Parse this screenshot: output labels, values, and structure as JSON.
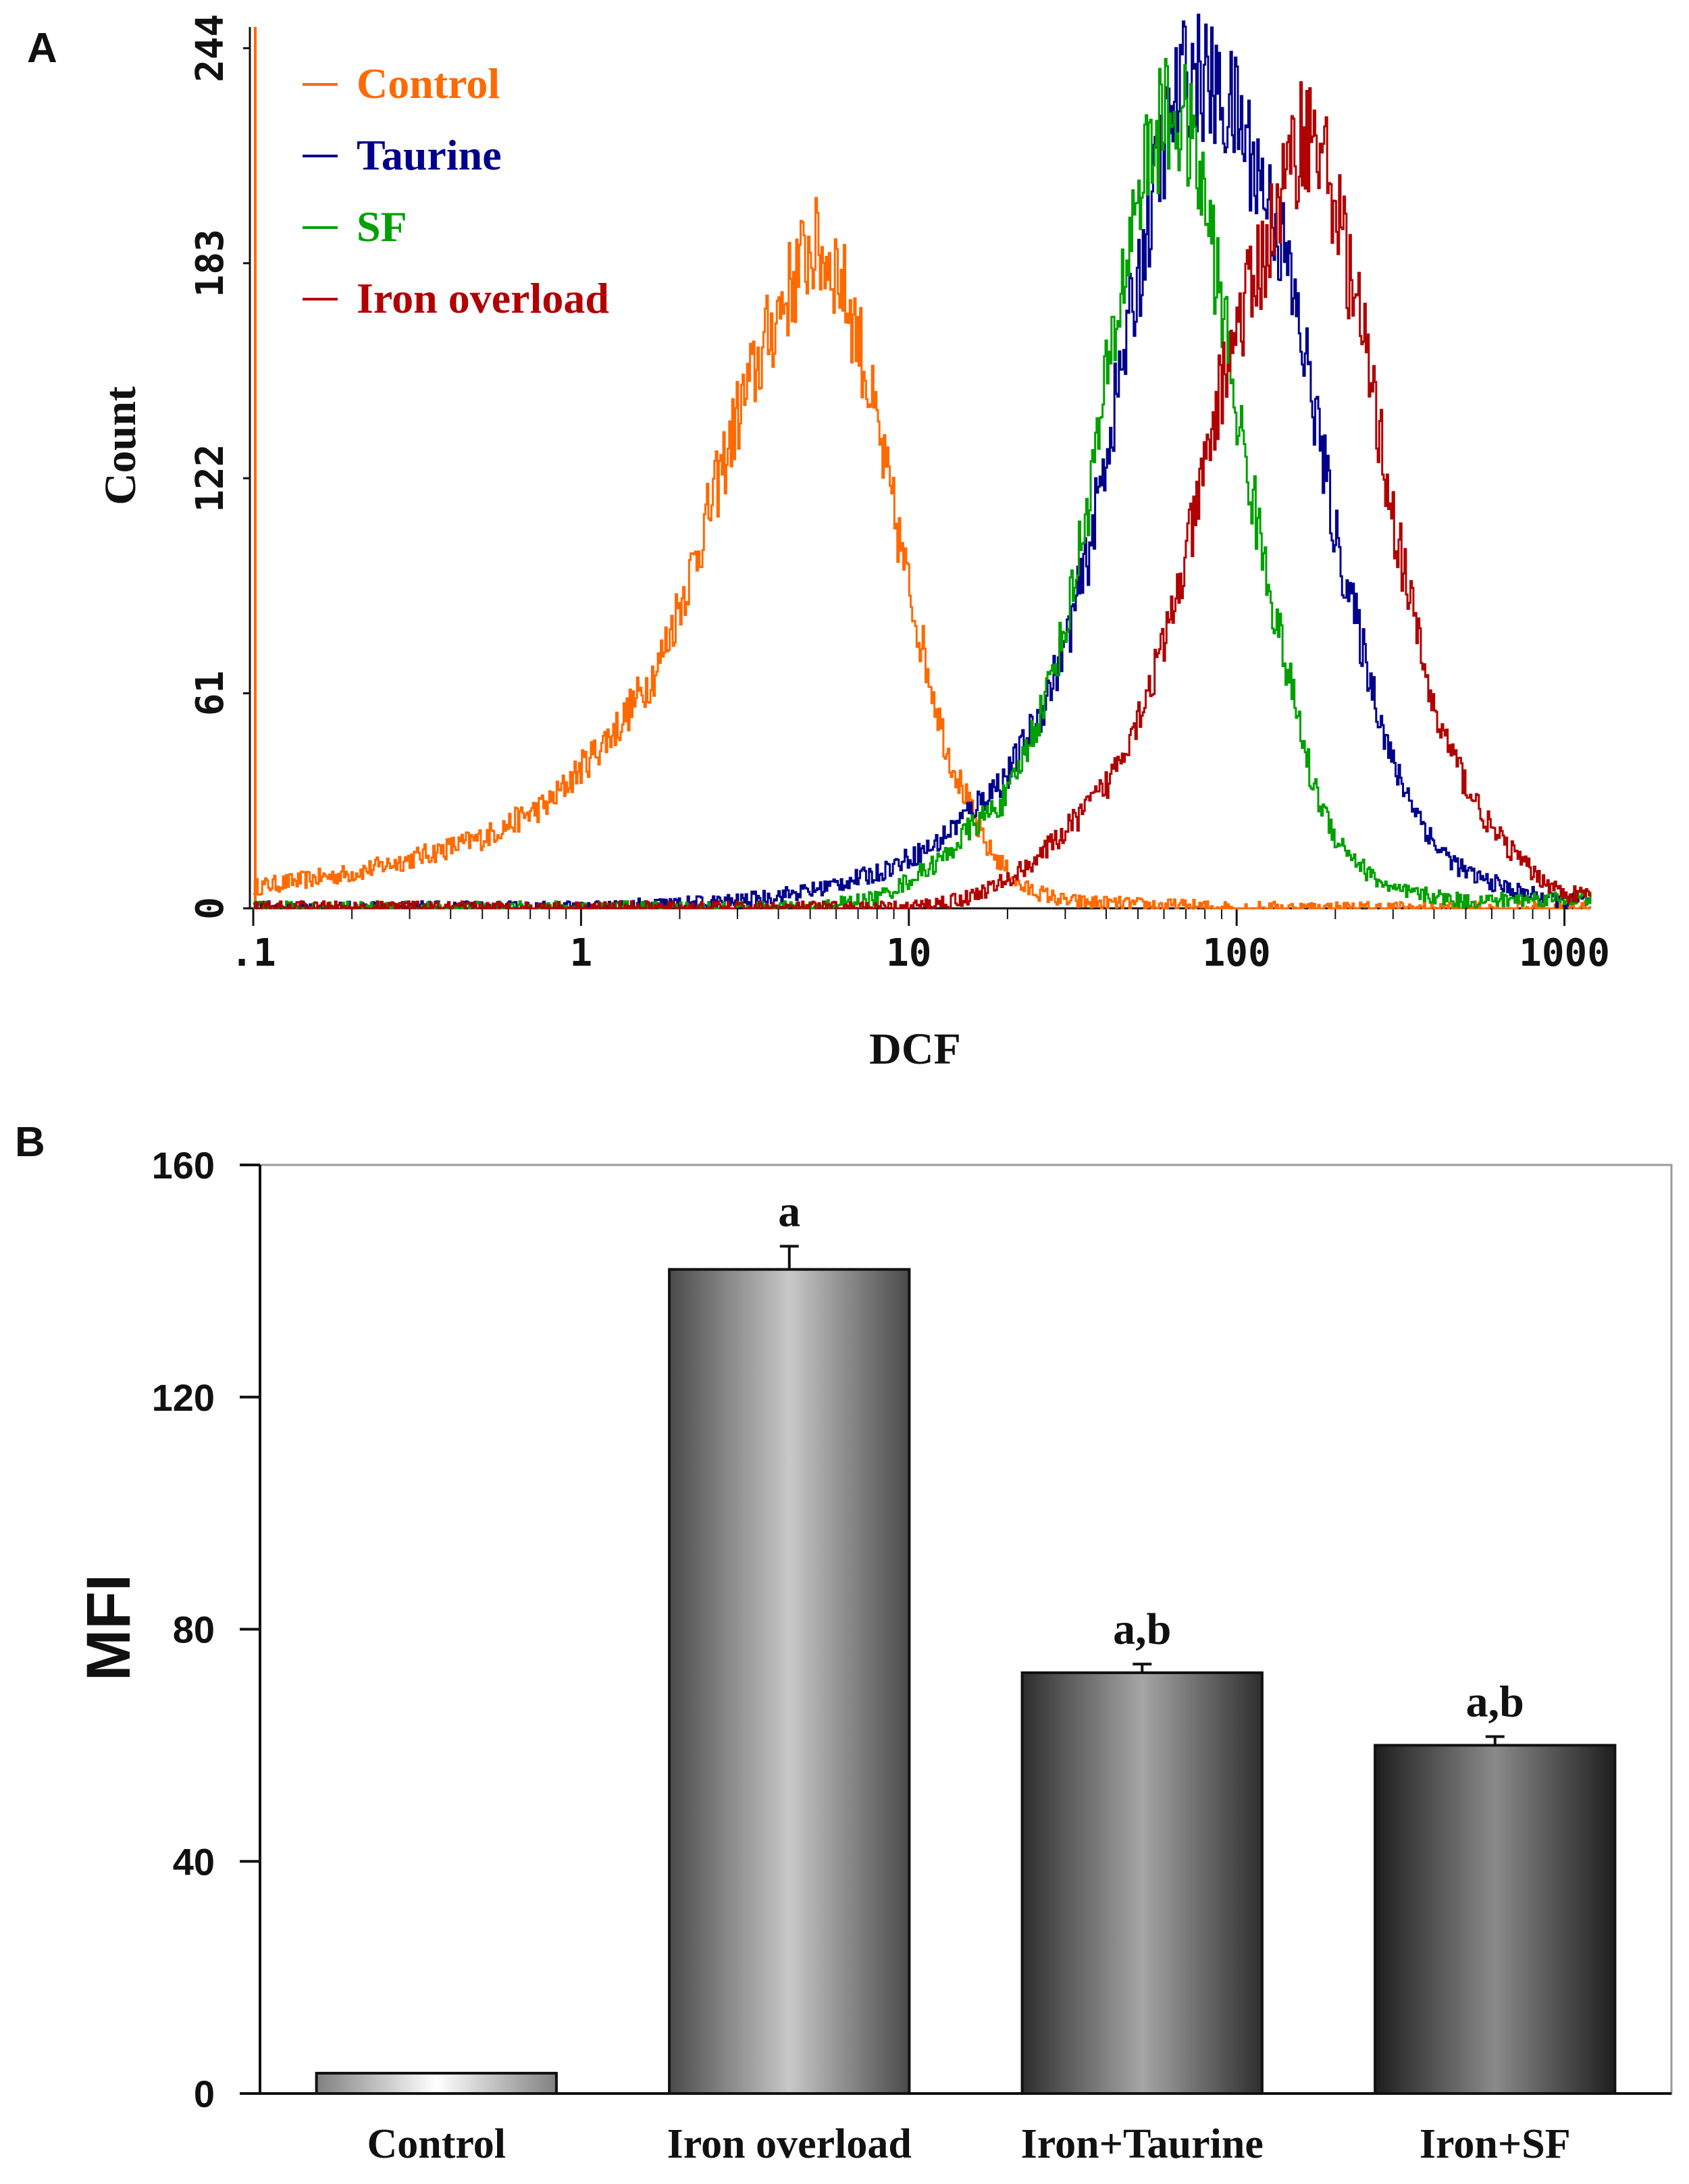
{
  "panels": {
    "a_letter": "A",
    "b_letter": "B"
  },
  "chart_data": [
    {
      "type": "line",
      "panel": "A",
      "title": "",
      "xlabel": "DCF",
      "ylabel": "Count",
      "xscale": "log",
      "xlim": [
        0.1,
        1200
      ],
      "ylim": [
        0,
        250
      ],
      "x_tick_labels": [
        ".1",
        "1",
        "10",
        "100",
        "1000"
      ],
      "x_tick_values": [
        0.1,
        1,
        10,
        100,
        1000
      ],
      "y_tick_labels": [
        "0",
        "61",
        "122",
        "183",
        "244"
      ],
      "y_tick_values": [
        0,
        61,
        122,
        183,
        244
      ],
      "legend_position": "top-left",
      "series": [
        {
          "name": "Control",
          "color": "#ff6a00",
          "x": [
            0.1,
            0.2,
            0.3,
            0.5,
            0.8,
            1.0,
            1.3,
            1.7,
            2.2,
            3.0,
            4.0,
            5.0,
            6.0,
            7.0,
            8.0,
            10,
            13,
            17,
            22,
            30,
            50,
            100,
            1000
          ],
          "y": [
            6,
            10,
            14,
            20,
            30,
            40,
            52,
            68,
            98,
            140,
            170,
            188,
            182,
            162,
            135,
            90,
            45,
            18,
            6,
            2,
            1,
            0,
            0
          ]
        },
        {
          "name": "Taurine",
          "color": "#00008b",
          "x": [
            0.1,
            1.0,
            3.0,
            5.0,
            8.0,
            12,
            15,
            20,
            25,
            30,
            35,
            40,
            50,
            60,
            70,
            80,
            90,
            100,
            120,
            140,
            170,
            200,
            250,
            300,
            400,
            500,
            700,
            1000
          ],
          "y": [
            0,
            0,
            2,
            5,
            10,
            18,
            27,
            38,
            55,
            75,
            100,
            130,
            180,
            218,
            238,
            235,
            228,
            225,
            205,
            185,
            145,
            105,
            68,
            40,
            18,
            10,
            5,
            2
          ]
        },
        {
          "name": "SF",
          "color": "#00a000",
          "x": [
            0.1,
            5.0,
            8.0,
            10,
            13,
            15,
            18,
            20,
            25,
            30,
            35,
            40,
            50,
            60,
            70,
            80,
            90,
            100,
            120,
            140,
            170,
            200,
            250,
            300,
            500,
            1000
          ],
          "y": [
            0,
            0,
            3,
            8,
            15,
            22,
            28,
            32,
            55,
            80,
            115,
            150,
            205,
            225,
            222,
            200,
            170,
            140,
            100,
            70,
            35,
            20,
            10,
            5,
            2,
            3
          ]
        },
        {
          "name": "Iron overload",
          "color": "#b00000",
          "x": [
            0.1,
            10,
            15,
            20,
            25,
            30,
            40,
            50,
            60,
            70,
            80,
            90,
            100,
            120,
            140,
            160,
            180,
            200,
            250,
            300,
            350,
            400,
            500,
            600,
            800,
            1000
          ],
          "y": [
            0,
            0,
            3,
            8,
            15,
            22,
            35,
            55,
            75,
            100,
            125,
            150,
            165,
            185,
            205,
            222,
            215,
            200,
            155,
            110,
            80,
            55,
            35,
            22,
            10,
            4
          ]
        }
      ]
    },
    {
      "type": "bar",
      "panel": "B",
      "title": "",
      "xlabel": "",
      "ylabel": "MFI",
      "ylim": [
        0,
        160
      ],
      "y_tick_labels": [
        "0",
        "40",
        "80",
        "120",
        "160"
      ],
      "y_tick_values": [
        0,
        40,
        80,
        120,
        160
      ],
      "categories": [
        "Control",
        "Iron overload",
        "Iron+Taurine",
        "Iron+SF"
      ],
      "values": [
        3.5,
        142,
        72.5,
        60
      ],
      "errors": [
        0,
        4,
        1.5,
        1.5
      ],
      "annotations": [
        "",
        "a",
        "a,b",
        "a,b"
      ],
      "bar_colors": [
        "#d8d8d8",
        "#b0b0b0",
        "#8a8a8a",
        "#6a6a6a"
      ]
    }
  ]
}
